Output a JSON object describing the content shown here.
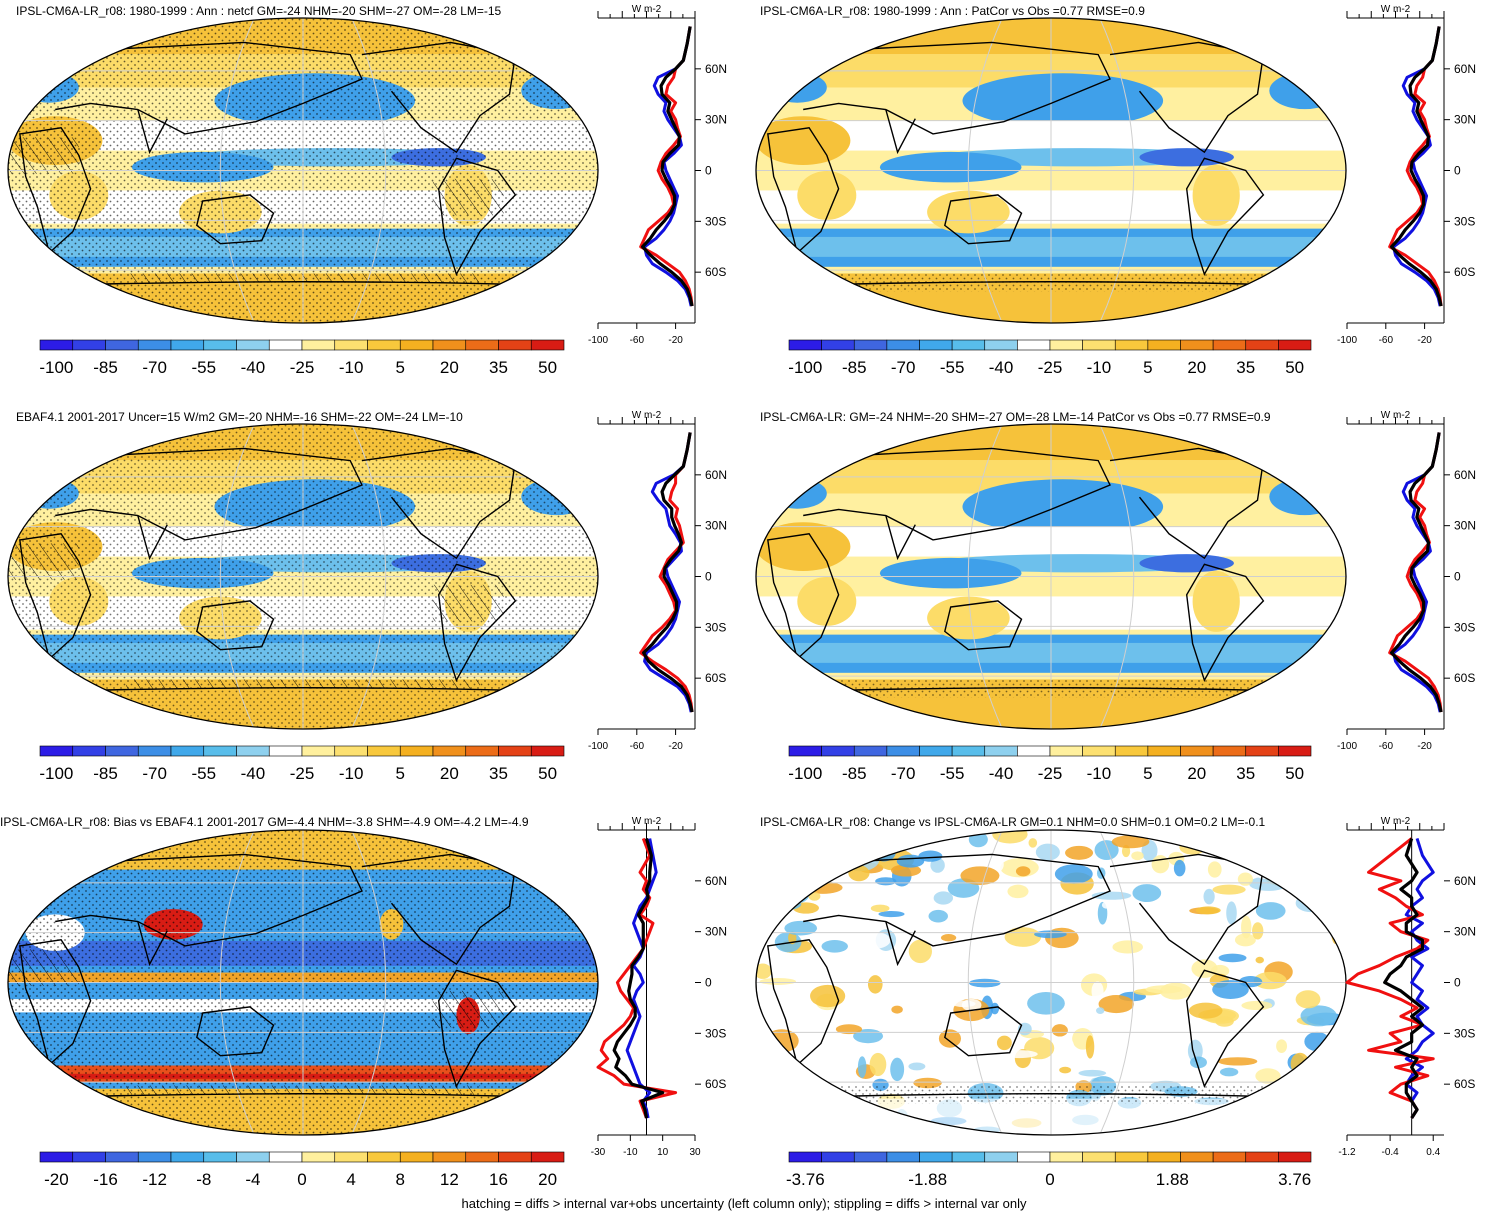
{
  "footer": "hatching = diffs > internal var+obs uncertainty (left column only); stippling = diffs > internal var only",
  "colors": {
    "line_blue": "#1010e0",
    "line_red": "#f01010",
    "line_black": "#000000",
    "palette_main": [
      "#2c1ce6",
      "#3240e6",
      "#3f66e0",
      "#3c8ee6",
      "#40a8ea",
      "#58bdea",
      "#8ed0ee",
      "#ffffff",
      "#fff09e",
      "#fce070",
      "#f8c83c",
      "#f4b020",
      "#f0901c",
      "#ec6c18",
      "#e44216",
      "#d81c14"
    ]
  },
  "panels": [
    {
      "id": "top-left",
      "title": "IPSL-CM6A-LR_r08: 1980-1999 : Ann : netcf GM=-24 NHM=-20 SHM=-27 OM=-28 LM=-15",
      "colorbar_labels": [
        "-100",
        "-85",
        "-70",
        "-55",
        "-40",
        "-25",
        "-10",
        "5",
        "20",
        "35",
        "50"
      ],
      "unit": "W m-2",
      "lat_labels": [
        "60N",
        "30N",
        "0",
        "30S",
        "60S"
      ],
      "profile_xticks": [
        "-100",
        "-60",
        "-20"
      ],
      "profile_xlim": [
        -100,
        0
      ]
    },
    {
      "id": "top-right",
      "title": "IPSL-CM6A-LR_r08: 1980-1999 : Ann : PatCor vs Obs =0.77 RMSE=0.9",
      "colorbar_labels": [
        "-100",
        "-85",
        "-70",
        "-55",
        "-40",
        "-25",
        "-10",
        "5",
        "20",
        "35",
        "50"
      ],
      "unit": "W m-2",
      "lat_labels": [
        "60N",
        "30N",
        "0",
        "30S",
        "60S"
      ],
      "profile_xticks": [
        "-100",
        "-60",
        "-20"
      ],
      "profile_xlim": [
        -100,
        0
      ]
    },
    {
      "id": "mid-left",
      "title": "EBAF4.1 2001-2017 Uncer=15 W/m2 GM=-20 NHM=-16 SHM=-22 OM=-24 LM=-10",
      "colorbar_labels": [
        "-100",
        "-85",
        "-70",
        "-55",
        "-40",
        "-25",
        "-10",
        "5",
        "20",
        "35",
        "50"
      ],
      "unit": "W m-2",
      "lat_labels": [
        "60N",
        "30N",
        "0",
        "30S",
        "60S"
      ],
      "profile_xticks": [
        "-100",
        "-60",
        "-20"
      ],
      "profile_xlim": [
        -100,
        0
      ]
    },
    {
      "id": "mid-right",
      "title": "IPSL-CM6A-LR: GM=-24 NHM=-20 SHM=-27 OM=-28 LM=-14 PatCor vs Obs =0.77 RMSE=0.9",
      "colorbar_labels": [
        "-100",
        "-85",
        "-70",
        "-55",
        "-40",
        "-25",
        "-10",
        "5",
        "20",
        "35",
        "50"
      ],
      "unit": "W m-2",
      "lat_labels": [
        "60N",
        "30N",
        "0",
        "30S",
        "60S"
      ],
      "profile_xticks": [
        "-100",
        "-60",
        "-20"
      ],
      "profile_xlim": [
        -100,
        0
      ]
    },
    {
      "id": "bot-left",
      "title": "IPSL-CM6A-LR_r08: Bias vs EBAF4.1 2001-2017 GM=-4.4 NHM=-3.8 SHM=-4.9 OM=-4.2 LM=-4.9",
      "colorbar_labels": [
        "-20",
        "-16",
        "-12",
        "-8",
        "-4",
        "0",
        "4",
        "8",
        "12",
        "16",
        "20"
      ],
      "unit": "W m-2",
      "lat_labels": [
        "60N",
        "30N",
        "0",
        "30S",
        "60S"
      ],
      "profile_xticks": [
        "-30",
        "-10",
        "10",
        "30"
      ],
      "profile_xlim": [
        -30,
        30
      ]
    },
    {
      "id": "bot-right",
      "title": "IPSL-CM6A-LR_r08: Change vs IPSL-CM6A-LR GM=0.1 NHM=0.0 SHM=0.1 OM=0.2 LM=-0.1",
      "colorbar_labels": [
        "-3.76",
        "-1.88",
        "0",
        "1.88",
        "3.76"
      ],
      "unit": "W m-2",
      "lat_labels": [
        "60N",
        "30N",
        "0",
        "30S",
        "60S"
      ],
      "profile_xticks": [
        "-1.2",
        "-0.4",
        "0.4"
      ],
      "profile_xlim": [
        -1.2,
        0.6
      ]
    }
  ],
  "chart_data": [
    {
      "type": "line",
      "title": "IPSL-CM6A-LR_r08: 1980-1999 : Ann : netcf GM=-24 NHM=-20 SHM=-27 OM=-28 LM=-15",
      "xlabel": "W m-2",
      "ylabel": "",
      "xlim": [
        -100,
        0
      ],
      "ylim": [
        -90,
        90
      ],
      "y": [
        85,
        75,
        65,
        60,
        55,
        50,
        45,
        40,
        35,
        30,
        25,
        20,
        15,
        10,
        5,
        0,
        -5,
        -10,
        -15,
        -20,
        -25,
        -30,
        -35,
        -40,
        -45,
        -50,
        -55,
        -60,
        -65,
        -70,
        -75,
        -80
      ],
      "series": [
        {
          "name": "blue",
          "values": [
            -5,
            -8,
            -12,
            -20,
            -38,
            -42,
            -38,
            -30,
            -32,
            -28,
            -22,
            -16,
            -14,
            -22,
            -32,
            -30,
            -26,
            -22,
            -18,
            -20,
            -22,
            -26,
            -32,
            -40,
            -52,
            -50,
            -44,
            -30,
            -18,
            -10,
            -6,
            -4
          ]
        },
        {
          "name": "red",
          "values": [
            -5,
            -8,
            -12,
            -20,
            -22,
            -28,
            -30,
            -20,
            -25,
            -20,
            -18,
            -15,
            -22,
            -30,
            -35,
            -38,
            -34,
            -28,
            -24,
            -22,
            -28,
            -38,
            -48,
            -52,
            -56,
            -40,
            -28,
            -16,
            -10,
            -6,
            -4,
            -3
          ]
        },
        {
          "name": "black",
          "values": [
            -5,
            -8,
            -12,
            -20,
            -30,
            -35,
            -34,
            -26,
            -28,
            -24,
            -20,
            -16,
            -17,
            -26,
            -33,
            -34,
            -30,
            -25,
            -21,
            -21,
            -25,
            -32,
            -40,
            -46,
            -54,
            -46,
            -36,
            -24,
            -14,
            -8,
            -5,
            -3
          ]
        }
      ]
    },
    {
      "type": "line",
      "title": "IPSL-CM6A-LR_r08: 1980-1999 : Ann : PatCor vs Obs =0.77 RMSE=0.9",
      "xlabel": "W m-2",
      "ylabel": "",
      "xlim": [
        -100,
        0
      ],
      "ylim": [
        -90,
        90
      ],
      "y": [
        85,
        75,
        65,
        60,
        55,
        50,
        45,
        40,
        35,
        30,
        25,
        20,
        15,
        10,
        5,
        0,
        -5,
        -10,
        -15,
        -20,
        -25,
        -30,
        -35,
        -40,
        -45,
        -50,
        -55,
        -60,
        -65,
        -70,
        -75,
        -80
      ],
      "series": [
        {
          "name": "blue",
          "values": [
            -5,
            -8,
            -12,
            -20,
            -38,
            -42,
            -38,
            -30,
            -32,
            -28,
            -22,
            -16,
            -14,
            -22,
            -32,
            -30,
            -26,
            -22,
            -18,
            -20,
            -22,
            -26,
            -32,
            -40,
            -52,
            -50,
            -44,
            -30,
            -18,
            -10,
            -6,
            -4
          ]
        },
        {
          "name": "red",
          "values": [
            -5,
            -8,
            -12,
            -20,
            -22,
            -28,
            -30,
            -20,
            -25,
            -20,
            -18,
            -15,
            -22,
            -30,
            -35,
            -38,
            -34,
            -28,
            -24,
            -22,
            -28,
            -38,
            -48,
            -52,
            -56,
            -40,
            -28,
            -16,
            -10,
            -6,
            -4,
            -3
          ]
        },
        {
          "name": "black",
          "values": [
            -5,
            -8,
            -12,
            -20,
            -30,
            -35,
            -34,
            -26,
            -28,
            -24,
            -20,
            -16,
            -17,
            -26,
            -33,
            -34,
            -30,
            -25,
            -21,
            -21,
            -25,
            -32,
            -40,
            -46,
            -54,
            -46,
            -36,
            -24,
            -14,
            -8,
            -5,
            -3
          ]
        }
      ]
    },
    {
      "type": "line",
      "title": "EBAF4.1 2001-2017 Uncer=15 W/m2 GM=-20 NHM=-16 SHM=-22 OM=-24 LM=-10",
      "xlabel": "W m-2",
      "ylabel": "",
      "xlim": [
        -100,
        0
      ],
      "ylim": [
        -90,
        90
      ],
      "y": [
        85,
        75,
        65,
        60,
        55,
        50,
        45,
        40,
        35,
        30,
        25,
        20,
        15,
        10,
        5,
        0,
        -5,
        -10,
        -15,
        -20,
        -25,
        -30,
        -35,
        -40,
        -45,
        -50,
        -55,
        -60,
        -65,
        -70,
        -75,
        -80
      ],
      "series": [
        {
          "name": "blue",
          "values": [
            -5,
            -8,
            -12,
            -22,
            -40,
            -44,
            -38,
            -30,
            -28,
            -26,
            -20,
            -15,
            -14,
            -22,
            -30,
            -28,
            -24,
            -20,
            -16,
            -18,
            -20,
            -24,
            -30,
            -38,
            -50,
            -52,
            -46,
            -32,
            -18,
            -10,
            -6,
            -4
          ]
        },
        {
          "name": "red",
          "values": [
            -5,
            -8,
            -12,
            -20,
            -20,
            -24,
            -26,
            -18,
            -20,
            -16,
            -14,
            -12,
            -20,
            -28,
            -32,
            -36,
            -30,
            -26,
            -22,
            -20,
            -26,
            -34,
            -44,
            -50,
            -56,
            -44,
            -30,
            -18,
            -10,
            -6,
            -4,
            -3
          ]
        },
        {
          "name": "black",
          "values": [
            -5,
            -8,
            -12,
            -21,
            -30,
            -34,
            -32,
            -24,
            -24,
            -21,
            -17,
            -14,
            -17,
            -25,
            -31,
            -32,
            -27,
            -23,
            -19,
            -19,
            -23,
            -29,
            -37,
            -44,
            -53,
            -48,
            -38,
            -25,
            -14,
            -8,
            -5,
            -3
          ]
        }
      ]
    },
    {
      "type": "line",
      "title": "IPSL-CM6A-LR: GM=-24 NHM=-20 SHM=-27 OM=-28 LM=-14 PatCor vs Obs =0.77 RMSE=0.9",
      "xlabel": "W m-2",
      "ylabel": "",
      "xlim": [
        -100,
        0
      ],
      "ylim": [
        -90,
        90
      ],
      "y": [
        85,
        75,
        65,
        60,
        55,
        50,
        45,
        40,
        35,
        30,
        25,
        20,
        15,
        10,
        5,
        0,
        -5,
        -10,
        -15,
        -20,
        -25,
        -30,
        -35,
        -40,
        -45,
        -50,
        -55,
        -60,
        -65,
        -70,
        -75,
        -80
      ],
      "series": [
        {
          "name": "blue",
          "values": [
            -5,
            -8,
            -12,
            -20,
            -38,
            -42,
            -38,
            -30,
            -32,
            -28,
            -22,
            -16,
            -14,
            -22,
            -32,
            -30,
            -26,
            -22,
            -18,
            -20,
            -22,
            -26,
            -32,
            -40,
            -52,
            -50,
            -44,
            -30,
            -18,
            -10,
            -6,
            -4
          ]
        },
        {
          "name": "red",
          "values": [
            -5,
            -8,
            -12,
            -20,
            -22,
            -28,
            -30,
            -20,
            -25,
            -20,
            -18,
            -15,
            -22,
            -30,
            -35,
            -38,
            -34,
            -28,
            -24,
            -22,
            -28,
            -38,
            -48,
            -52,
            -56,
            -40,
            -28,
            -16,
            -10,
            -6,
            -4,
            -3
          ]
        },
        {
          "name": "black",
          "values": [
            -5,
            -8,
            -12,
            -20,
            -30,
            -35,
            -34,
            -26,
            -28,
            -24,
            -20,
            -16,
            -17,
            -26,
            -33,
            -34,
            -30,
            -25,
            -21,
            -21,
            -25,
            -32,
            -40,
            -46,
            -54,
            -46,
            -36,
            -24,
            -14,
            -8,
            -5,
            -3
          ]
        }
      ]
    },
    {
      "type": "line",
      "title": "IPSL-CM6A-LR_r08: Bias vs EBAF4.1 2001-2017 GM=-4.4 NHM=-3.8 SHM=-4.9 OM=-4.2 LM=-4.9",
      "xlabel": "W m-2",
      "ylabel": "",
      "xlim": [
        -30,
        30
      ],
      "ylim": [
        -90,
        90
      ],
      "y": [
        85,
        75,
        65,
        60,
        55,
        50,
        45,
        40,
        35,
        30,
        25,
        20,
        15,
        10,
        5,
        0,
        -5,
        -10,
        -15,
        -20,
        -25,
        -30,
        -35,
        -40,
        -45,
        -50,
        -55,
        -60,
        -65,
        -70,
        -75,
        -80
      ],
      "series": [
        {
          "name": "blue",
          "values": [
            2,
            4,
            6,
            4,
            2,
            0,
            -4,
            -6,
            -8,
            -6,
            -4,
            -2,
            -4,
            -8,
            -4,
            -2,
            -6,
            -8,
            -6,
            -4,
            -6,
            -8,
            -10,
            -12,
            -10,
            -8,
            -6,
            -4,
            2,
            -2,
            0,
            1
          ]
        },
        {
          "name": "red",
          "values": [
            -2,
            2,
            -4,
            0,
            -2,
            2,
            0,
            -4,
            4,
            2,
            0,
            -2,
            -6,
            -10,
            -14,
            -18,
            -16,
            -12,
            -8,
            -10,
            -14,
            -20,
            -26,
            -28,
            -24,
            -30,
            -20,
            -14,
            18,
            -4,
            -2,
            0
          ]
        },
        {
          "name": "black",
          "values": [
            0,
            3,
            2,
            2,
            0,
            1,
            -2,
            -5,
            -2,
            -2,
            -2,
            -2,
            -5,
            -9,
            -9,
            -10,
            -11,
            -10,
            -7,
            -7,
            -10,
            -14,
            -18,
            -20,
            -17,
            -19,
            -13,
            -9,
            10,
            -3,
            -1,
            0
          ]
        }
      ]
    },
    {
      "type": "line",
      "title": "IPSL-CM6A-LR_r08: Change vs IPSL-CM6A-LR GM=0.1 NHM=0.0 SHM=0.1 OM=0.2 LM=-0.1",
      "xlabel": "W m-2",
      "ylabel": "",
      "xlim": [
        -1.2,
        0.6
      ],
      "ylim": [
        -90,
        90
      ],
      "y": [
        85,
        75,
        65,
        60,
        55,
        50,
        45,
        40,
        35,
        30,
        25,
        20,
        15,
        10,
        5,
        0,
        -5,
        -10,
        -15,
        -20,
        -25,
        -30,
        -35,
        -40,
        -45,
        -50,
        -55,
        -60,
        -65,
        -70,
        -75,
        -80
      ],
      "series": [
        {
          "name": "blue",
          "values": [
            0.1,
            0.2,
            0.4,
            0.2,
            0.1,
            0.2,
            0.0,
            -0.1,
            0.2,
            0.0,
            0.1,
            0.3,
            0.0,
            0.2,
            0.1,
            0.0,
            0.2,
            0.1,
            0.3,
            0.1,
            0.2,
            0.4,
            0.2,
            0.1,
            -0.1,
            0.2,
            0.0,
            -0.1,
            0.1,
            0.0,
            0.1,
            0.0
          ]
        },
        {
          "name": "red",
          "values": [
            0.0,
            -0.4,
            -0.8,
            -0.2,
            -0.6,
            -0.3,
            -0.1,
            0.2,
            -0.4,
            -0.2,
            0.3,
            0.1,
            -0.3,
            -0.6,
            -1.0,
            -1.2,
            -0.6,
            -0.2,
            0.1,
            -0.2,
            0.2,
            -0.4,
            -0.2,
            -0.8,
            0.4,
            -0.3,
            0.3,
            -0.2,
            -0.4,
            0.0,
            0.1,
            0.0
          ]
        },
        {
          "name": "black",
          "values": [
            0.0,
            -0.1,
            0.1,
            0.0,
            -0.2,
            0.0,
            0.0,
            0.1,
            -0.1,
            -0.1,
            0.2,
            0.2,
            -0.1,
            -0.2,
            -0.4,
            -0.5,
            -0.2,
            0.0,
            0.2,
            0.0,
            0.2,
            0.0,
            0.0,
            -0.3,
            0.1,
            0.0,
            0.1,
            -0.1,
            -0.1,
            0.0,
            0.1,
            0.0
          ]
        }
      ]
    }
  ]
}
